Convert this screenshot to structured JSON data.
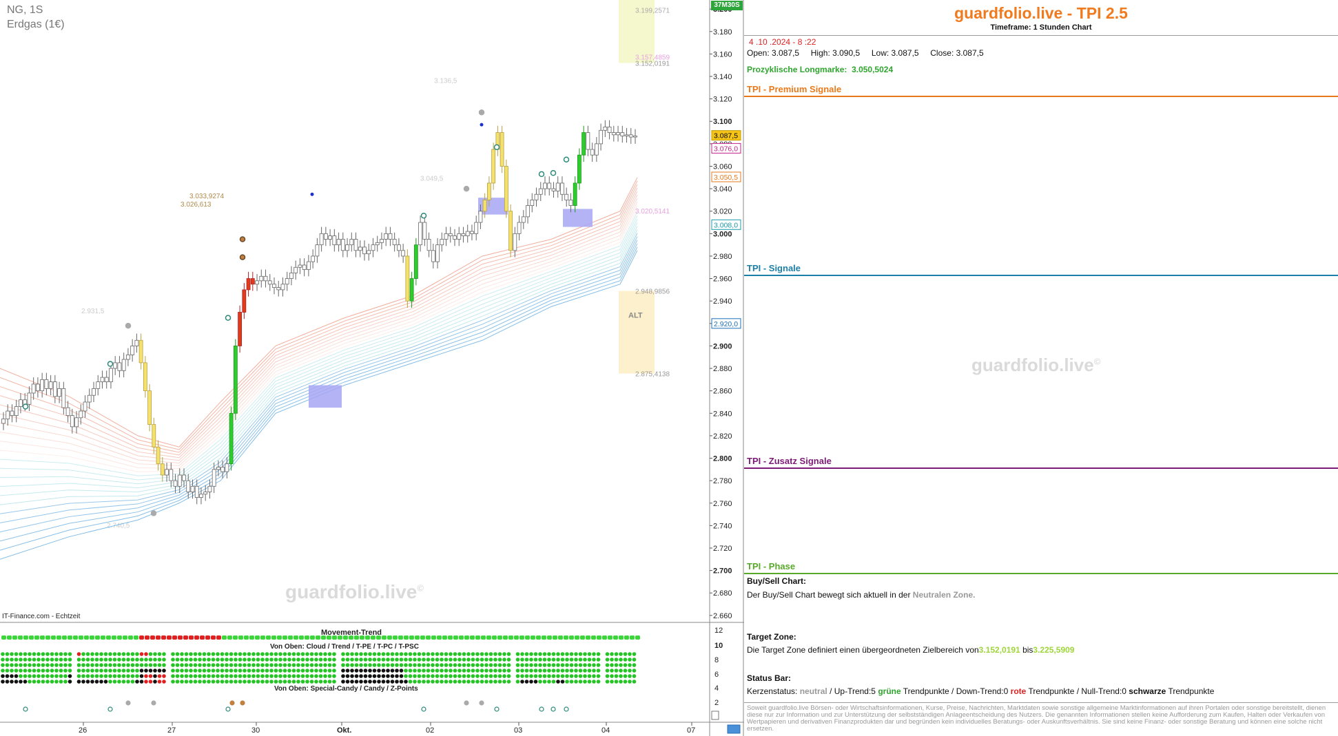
{
  "chart_header": {
    "symbol": "NG, 1S",
    "name": "Erdgas (1€)",
    "timer": "37M30S",
    "credit": "IT-Finance.com - Echtzeit"
  },
  "watermark": {
    "text": "guardfolio.live",
    "mark": "©"
  },
  "colors": {
    "up_candle": "#2ecc2e",
    "down_candle": "#e23a1a",
    "neutral_candle": "#ffffff",
    "yellow_candle": "#f5e26e",
    "ribbon_red": "#e86a4a",
    "ribbon_cyan": "#7ad0d8",
    "ribbon_blue": "#5aa7e0",
    "title_orange": "#f07a1e",
    "premium_orange": "#e87a1c",
    "signale_blue": "#1c7fa8",
    "zusatz_purple": "#7d1a78",
    "phase_green": "#58a82a"
  },
  "chart_data": {
    "type": "candlestick",
    "title": "NG, 1S",
    "ylim": [
      2.655,
      3.205
    ],
    "y_ticks": [
      "3.200",
      "3.180",
      "3.160",
      "3.140",
      "3.120",
      "3.100",
      "3.080",
      "3.060",
      "3.040",
      "3.020",
      "3.000",
      "2.980",
      "2.960",
      "2.940",
      "2.920",
      "2.900",
      "2.880",
      "2.860",
      "2.840",
      "2.820",
      "2.800",
      "2.780",
      "2.760",
      "2.740",
      "2.720",
      "2.700",
      "2.680",
      "2.660"
    ],
    "x_ticks": [
      "26",
      "27",
      "30",
      "Okt.",
      "02",
      "03",
      "04",
      "07"
    ],
    "price_tags": [
      {
        "label": "3.087,5",
        "value": 3.0875,
        "style": "current"
      },
      {
        "label": "3.076,0",
        "value": 3.076,
        "style": "pink"
      },
      {
        "label": "3.050,5",
        "value": 3.0505,
        "style": "orange"
      },
      {
        "label": "3.008,0",
        "value": 3.008,
        "style": "cyan"
      },
      {
        "label": "2.920,0",
        "value": 2.92,
        "style": "blue"
      }
    ],
    "level_labels": [
      {
        "label": "3.199,2571",
        "value": 3.1993
      },
      {
        "label": "3.157,4859",
        "value": 3.1575
      },
      {
        "label": "3.152,0191",
        "value": 3.152
      },
      {
        "label": "3.136,5",
        "value": 3.1365
      },
      {
        "label": "3.049,5",
        "value": 3.0495
      },
      {
        "label": "3.033,9274",
        "value": 3.0339
      },
      {
        "label": "3.026,613",
        "value": 3.0266
      },
      {
        "label": "3.020,5141",
        "value": 3.0205
      },
      {
        "label": "2.948,9856",
        "value": 2.949
      },
      {
        "label": "2.931,5",
        "value": 2.9315
      },
      {
        "label": "2.875,4138",
        "value": 2.8754
      },
      {
        "label": "2.740,5",
        "value": 2.7405
      }
    ],
    "zone_label": "ALT",
    "series": [
      {
        "name": "Close",
        "values": [
          2.835,
          2.842,
          2.838,
          2.846,
          2.852,
          2.848,
          2.858,
          2.866,
          2.86,
          2.87,
          2.862,
          2.868,
          2.855,
          2.862,
          2.845,
          2.838,
          2.828,
          2.836,
          2.842,
          2.85,
          2.856,
          2.862,
          2.868,
          2.872,
          2.868,
          2.88,
          2.885,
          2.878,
          2.888,
          2.892,
          2.9,
          2.905,
          2.885,
          2.86,
          2.83,
          2.81,
          2.795,
          2.785,
          2.79,
          2.78,
          2.775,
          2.785,
          2.78,
          2.77,
          2.775,
          2.765,
          2.768,
          2.77,
          2.775,
          2.79,
          2.792,
          2.788,
          2.795,
          2.84,
          2.9,
          2.93,
          2.95,
          2.96,
          2.955,
          2.958,
          2.962,
          2.958,
          2.955,
          2.952,
          2.95,
          2.955,
          2.96,
          2.965,
          2.97,
          2.972,
          2.968,
          2.975,
          2.98,
          2.99,
          3.0,
          2.995,
          2.998,
          2.99,
          2.995,
          2.985,
          2.99,
          2.995,
          2.985,
          2.988,
          2.982,
          2.985,
          2.99,
          2.992,
          2.995,
          3.0,
          2.995,
          2.99,
          2.985,
          2.98,
          2.94,
          2.96,
          2.99,
          3.01,
          2.995,
          2.985,
          2.975,
          2.99,
          2.995,
          3.0,
          2.998,
          2.995,
          3.0,
          2.998,
          3.002,
          3.0,
          3.01,
          3.02,
          3.03,
          3.045,
          3.075,
          3.09,
          3.06,
          3.02,
          2.985,
          3.0,
          3.01,
          3.015,
          3.025,
          3.03,
          3.035,
          3.04,
          3.045,
          3.04,
          3.038,
          3.045,
          3.035,
          3.03,
          3.025,
          3.045,
          3.07,
          3.09,
          3.075,
          3.07,
          3.08,
          3.092,
          3.095,
          3.09,
          3.088,
          3.09,
          3.087,
          3.088,
          3.086,
          3.087
        ]
      }
    ],
    "moving_averages": [
      "orange-red ribbon (upper)",
      "light cyan ribbon",
      "blue ribbon (lower)"
    ]
  },
  "indicator_panel": {
    "title_movement": "Movement-Trend",
    "title_cloud": "Von Oben: Cloud / Trend / T-PE / T-PC / T-PSC",
    "title_special": "Von Oben: Special-Candy / Candy / Z-Points",
    "y_ticks": [
      "12",
      "10",
      "8",
      "6",
      "4",
      "2",
      "0"
    ]
  },
  "panel": {
    "title": "guardfolio.live - TPI 2.5",
    "timeframe": "Timeframe: 1 Stunden Chart",
    "datetime": " 4 .10 .2024  - 8 :22",
    "open_label": "Open:",
    "open": "3.087,5",
    "high_label": "High:",
    "high": "3.090,5",
    "low_label": "Low:",
    "low": "3.087,5",
    "close_label": "Close:",
    "close": "3.087,5",
    "longmark_label": "Prozyklische Longmarke:",
    "longmark_value": "3.050,5024",
    "sections": {
      "premium": "TPI - Premium Signale",
      "signale": "TPI - Signale",
      "zusatz": "TPI - Zusatz Signale",
      "phase": "TPI - Phase"
    },
    "buysell_title": "Buy/Sell Chart:",
    "buysell_text_a": "Der Buy/Sell Chart bewegt sich aktuell in der ",
    "buysell_zone": "Neutralen Zone.",
    "target_title": "Target Zone:",
    "target_text_a": "Die Target Zone definiert einen übergeordneten Zielbereich von",
    "target_from": "3.152,0191",
    "target_mid": " bis",
    "target_to": "3.225,5909",
    "status_title": "Status Bar:",
    "status_a": "Kerzenstatus: ",
    "status_neutral": "neutral",
    "status_b": "  / Up-Trend:5 ",
    "status_green": "grüne",
    "status_c": " Trendpunkte  / Down-Trend:0 ",
    "status_red": "rote",
    "status_d": " Trendpunkte / Null-Trend:0 ",
    "status_black": "schwarze",
    "status_e": " Trendpunkte",
    "disclaimer": "Soweit guardfolio.live Börsen- oder Wirtschaftsinformationen, Kurse, Preise, Nachrichten, Marktdaten sowie sonstige allgemeine Marktinformationen auf ihren Portalen oder sonstige bereitstellt, dienen diese nur zur Information und zur Unterstützung der selbstständigen Anlageentscheidung des Nutzers. Die genannten Informationen stellen keine Aufforderung zum Kaufen, Halten oder Verkaufen von Wertpapieren und derivativen Finanzprodukten dar und begründen kein individuelles Beratungs- oder Auskunftsverhältnis. Sie sind keine Finanz- oder sonstige Beratung und können eine solche nicht ersetzen."
  }
}
